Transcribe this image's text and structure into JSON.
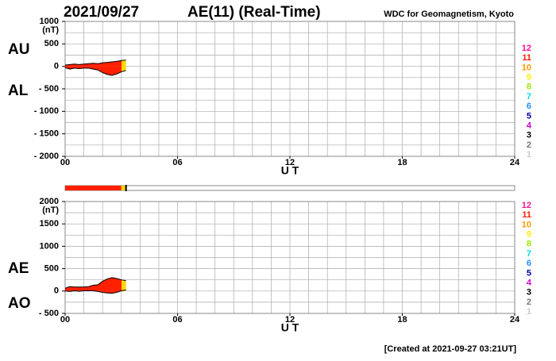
{
  "title": "2021/09/27",
  "subtitle": "AE(11) (Real-Time)",
  "source": "WDC for Geomagnetism, Kyoto",
  "footer": "[Created at 2021-09-27 03:21UT]",
  "station_legend": [
    {
      "label": "12",
      "color": "#ff1493"
    },
    {
      "label": "11",
      "color": "#ff2000"
    },
    {
      "label": "10",
      "color": "#ff9900"
    },
    {
      "label": "9",
      "color": "#ffee00"
    },
    {
      "label": "8",
      "color": "#99ee00"
    },
    {
      "label": "7",
      "color": "#00dddd"
    },
    {
      "label": "6",
      "color": "#1e90ff"
    },
    {
      "label": "5",
      "color": "#0000aa"
    },
    {
      "label": "4",
      "color": "#cc00cc"
    },
    {
      "label": "3",
      "color": "#000000"
    },
    {
      "label": "2",
      "color": "#777777"
    },
    {
      "label": "1",
      "color": "#cccccc"
    }
  ],
  "coverage": [
    {
      "from": 0,
      "to": 3,
      "color": "#ff2000"
    },
    {
      "from": 3,
      "to": 3.25,
      "color": "#ffd700"
    }
  ],
  "chart_data": [
    {
      "type": "area",
      "ylabel": "(nT)",
      "xlabel": "U T",
      "x": [
        0,
        0.25,
        0.5,
        0.75,
        1,
        1.25,
        1.5,
        1.75,
        2,
        2.25,
        2.5,
        2.75,
        3,
        3.25
      ],
      "series": [
        {
          "name": "AU",
          "values": [
            30,
            40,
            50,
            40,
            50,
            60,
            70,
            60,
            80,
            90,
            100,
            110,
            130,
            140
          ]
        },
        {
          "name": "AL",
          "values": [
            -30,
            -60,
            -40,
            -50,
            -40,
            -40,
            -60,
            -80,
            -140,
            -180,
            -200,
            -170,
            -120,
            -90
          ]
        }
      ],
      "xlim": [
        0,
        24
      ],
      "ylim": [
        -2000,
        1000
      ],
      "xticks": [
        {
          "value": 0,
          "label": "00"
        },
        {
          "value": 6,
          "label": "06"
        },
        12,
        18,
        24
      ],
      "xgrid": [
        1,
        2,
        3,
        4,
        5,
        6,
        7,
        8,
        9,
        10,
        11,
        12,
        13,
        14,
        15,
        16,
        17,
        18,
        19,
        20,
        21,
        22,
        23
      ],
      "yticks": [
        1000,
        500,
        0,
        {
          "value": -500,
          "label": "- 500"
        },
        {
          "value": -1000,
          "label": "- 1000"
        },
        {
          "value": -1500,
          "label": "- 1500"
        },
        {
          "value": -2000,
          "label": "- 2000"
        }
      ],
      "ygrid": [
        750,
        500,
        250,
        0,
        -250,
        -500,
        -750,
        -1000,
        -1250,
        -1500,
        -1750
      ]
    },
    {
      "type": "area",
      "ylabel": "(nT)",
      "xlabel": "U T",
      "x": [
        0,
        0.25,
        0.5,
        0.75,
        1,
        1.25,
        1.5,
        1.75,
        2,
        2.25,
        2.5,
        2.75,
        3,
        3.25
      ],
      "series": [
        {
          "name": "AE",
          "values": [
            60,
            100,
            90,
            90,
            90,
            100,
            130,
            140,
            220,
            270,
            300,
            280,
            250,
            230
          ]
        },
        {
          "name": "AO",
          "values": [
            0,
            -10,
            5,
            -5,
            5,
            10,
            5,
            -10,
            -30,
            -45,
            -50,
            -30,
            5,
            25
          ]
        }
      ],
      "xlim": [
        0,
        24
      ],
      "ylim": [
        -500,
        2000
      ],
      "xticks": [
        {
          "value": 0,
          "label": "00"
        },
        {
          "value": 6,
          "label": "06"
        },
        12,
        18,
        24
      ],
      "xgrid": [
        1,
        2,
        3,
        4,
        5,
        6,
        7,
        8,
        9,
        10,
        11,
        12,
        13,
        14,
        15,
        16,
        17,
        18,
        19,
        20,
        21,
        22,
        23
      ],
      "yticks": [
        2000,
        1500,
        1000,
        500,
        0,
        {
          "value": -500,
          "label": "- 500"
        }
      ],
      "ygrid": [
        1750,
        1500,
        1250,
        1000,
        750,
        500,
        250,
        0,
        -250
      ]
    }
  ]
}
